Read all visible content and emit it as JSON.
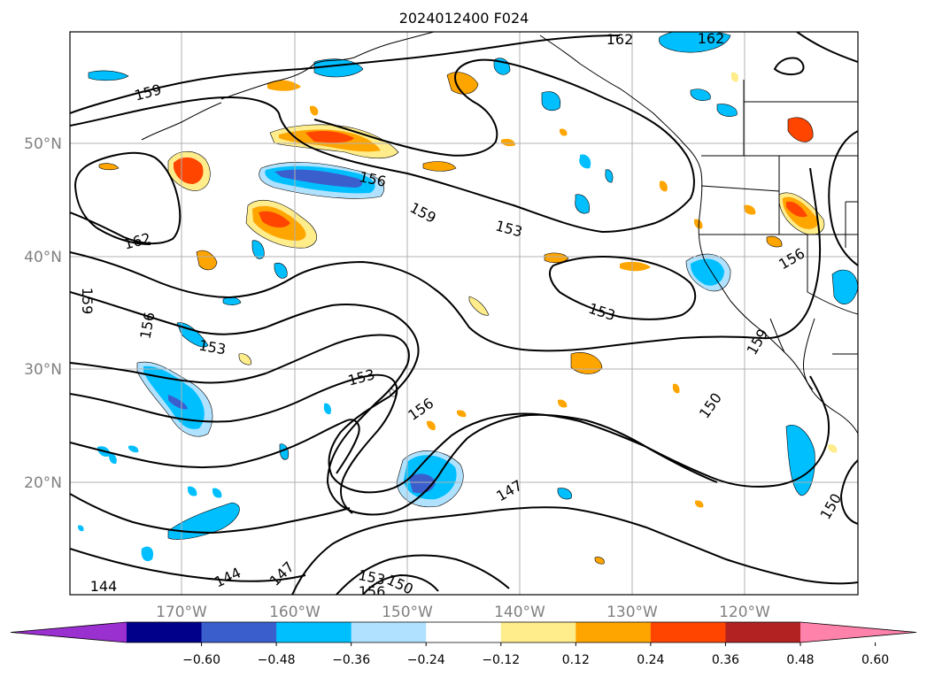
{
  "title": "2024012400 F024",
  "latitude_labels": [
    "50°N",
    "40°N",
    "30°N",
    "20°N"
  ],
  "longitude_labels": [
    "170°W",
    "160°W",
    "150°W",
    "140°W",
    "130°W",
    "120°W"
  ],
  "colorbar": {
    "ticks": [
      "−0.60",
      "−0.48",
      "−0.36",
      "−0.24",
      "−0.12",
      "0.12",
      "0.24",
      "0.36",
      "0.48",
      "0.60"
    ],
    "colors": [
      "#9b30d0",
      "#00008b",
      "#3a5fcd",
      "#00bfff",
      "#b0e2ff",
      "#ffffff",
      "#ffec8b",
      "#ffa500",
      "#ff4500",
      "#b22222",
      "#ff82ab"
    ]
  },
  "contour_labels": [
    {
      "text": "162",
      "name": "label-162-a"
    },
    {
      "text": "162",
      "name": "label-162-b"
    },
    {
      "text": "159",
      "name": "label-159-a"
    },
    {
      "text": "156",
      "name": "label-156-a"
    },
    {
      "text": "159",
      "name": "label-159-b"
    },
    {
      "text": "153",
      "name": "label-153-a"
    },
    {
      "text": "162",
      "name": "label-162-c"
    },
    {
      "text": "156",
      "name": "label-156-b"
    },
    {
      "text": "159",
      "name": "label-159-c"
    },
    {
      "text": "153",
      "name": "label-153-b"
    },
    {
      "text": "156",
      "name": "label-156-c"
    },
    {
      "text": "153",
      "name": "label-153-c"
    },
    {
      "text": "153",
      "name": "label-153-d"
    },
    {
      "text": "159",
      "name": "label-159-d"
    },
    {
      "text": "156",
      "name": "label-156-d"
    },
    {
      "text": "150",
      "name": "label-150-a"
    },
    {
      "text": "147",
      "name": "label-147-a"
    },
    {
      "text": "150",
      "name": "label-150-b"
    },
    {
      "text": "144",
      "name": "label-144-a"
    },
    {
      "text": "144",
      "name": "label-144-b"
    },
    {
      "text": "147",
      "name": "label-147-b"
    },
    {
      "text": "153",
      "name": "label-153-e"
    },
    {
      "text": "150",
      "name": "label-150-c"
    },
    {
      "text": "156",
      "name": "label-156-e"
    }
  ]
}
